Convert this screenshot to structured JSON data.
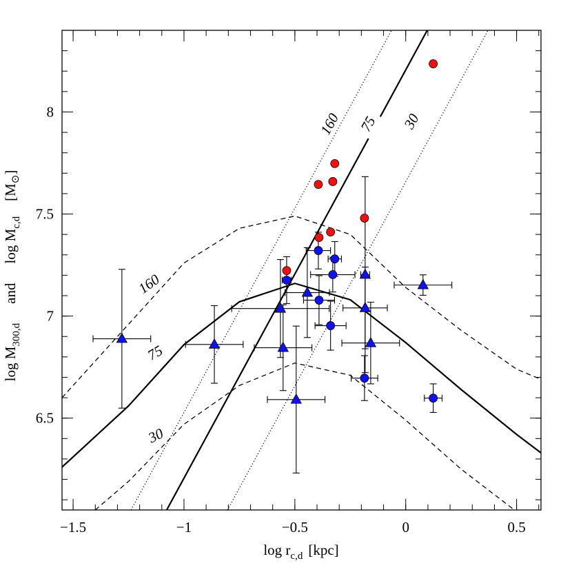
{
  "chart_data": {
    "type": "scatter",
    "xlabel": {
      "main": "log r",
      "sub": "c,d",
      "unit": "[kpc]"
    },
    "ylabel": {
      "left": "log M",
      "left_sub": "300,d",
      "middle": "and",
      "right": "log M",
      "right_sub": "c,d",
      "unit_open": "[M",
      "unit_symbol": "⊙",
      "unit_close": "]"
    },
    "xlim": [
      -1.55,
      0.61
    ],
    "ylim": [
      6.05,
      8.4
    ],
    "xticks": [
      {
        "value": -1.5,
        "label": "−1.5"
      },
      {
        "value": -1,
        "label": "−1"
      },
      {
        "value": -0.5,
        "label": "−0.5"
      },
      0,
      0.5
    ],
    "yticks": [
      6.5,
      7,
      7.5,
      8
    ],
    "xminorticks": [
      -1.5,
      -1.4,
      -1.3,
      -1.2,
      -1.1,
      -1.0,
      -0.9,
      -0.8,
      -0.7,
      -0.6,
      -0.5,
      -0.4,
      -0.3,
      -0.2,
      -0.1,
      0.0,
      0.1,
      0.2,
      0.3,
      0.4,
      0.5,
      0.6
    ],
    "yminorticks": [
      6.1,
      6.2,
      6.3,
      6.4,
      6.5,
      6.6,
      6.7,
      6.8,
      6.9,
      7.0,
      7.1,
      7.2,
      7.3,
      7.4,
      7.5,
      7.6,
      7.7,
      7.8,
      7.9,
      8.0,
      8.1,
      8.2,
      8.3,
      8.4
    ],
    "curve_labels": [
      "160",
      "75",
      "30",
      "160",
      "75",
      "30"
    ],
    "series": [
      {
        "type": "line",
        "style": "dotted",
        "color": "#000000",
        "x": [
          -1.239,
          -0.064
        ],
        "values": [
          6.05,
          8.4
        ]
      },
      {
        "type": "line",
        "style": "solid",
        "color": "#000000",
        "x": [
          -1.078,
          0.097
        ],
        "values": [
          6.05,
          8.4
        ]
      },
      {
        "type": "line",
        "style": "dotted",
        "color": "#000000",
        "x": [
          -0.804,
          0.371
        ],
        "values": [
          6.05,
          8.4
        ]
      },
      {
        "type": "line",
        "style": "dashed",
        "color": "#000000",
        "x": [
          -1.55,
          -1.25,
          -1,
          -0.75,
          -0.5,
          -0.25,
          0,
          0.25,
          0.5,
          0.61
        ],
        "values": [
          6.6,
          6.96,
          7.26,
          7.43,
          7.49,
          7.4,
          7.14,
          6.93,
          6.74,
          6.69
        ]
      },
      {
        "type": "line",
        "style": "solid",
        "color": "#000000",
        "x": [
          -1.55,
          -1.25,
          -1,
          -0.75,
          -0.5,
          -0.25,
          0,
          0.25,
          0.5,
          0.61
        ],
        "values": [
          6.26,
          6.56,
          6.86,
          7.07,
          7.16,
          7.08,
          6.87,
          6.64,
          6.42,
          6.33
        ]
      },
      {
        "type": "line",
        "style": "dashed",
        "color": "#000000",
        "x": [
          -1.4,
          -1.25,
          -1,
          -0.75,
          -0.5,
          -0.25,
          0,
          0.25,
          0.49
        ],
        "values": [
          6.05,
          6.19,
          6.47,
          6.66,
          6.77,
          6.71,
          6.49,
          6.25,
          6.05
        ]
      },
      {
        "type": "scatter",
        "marker": "circle",
        "color": "#ee1111",
        "x": [
          0.124,
          -0.394,
          -0.329,
          -0.32,
          -0.186,
          -0.391,
          -0.339,
          -0.537
        ],
        "values": [
          8.236,
          7.645,
          7.659,
          7.747,
          7.48,
          7.385,
          7.412,
          7.223
        ]
      },
      {
        "type": "scatter",
        "marker": "circle",
        "color": "#1111ee",
        "x": [
          -0.537,
          -0.394,
          -0.32,
          -0.329,
          -0.391,
          -0.339,
          -0.186,
          0.124
        ],
        "values": [
          7.176,
          7.321,
          7.28,
          7.203,
          7.078,
          6.953,
          6.696,
          6.598
        ],
        "xerr": [
          0.02,
          0.055,
          0.03,
          0.1,
          0.07,
          0.07,
          0.06,
          0.04
        ],
        "yerr": [
          0.115,
          0.09,
          0.085,
          0.085,
          0.12,
          0.12,
          0.11,
          0.07
        ]
      },
      {
        "type": "scatter",
        "marker": "triangle",
        "color": "#1111ee",
        "x": [
          -1.28,
          -0.863,
          -0.565,
          -0.553,
          -0.494,
          -0.444,
          -0.183,
          -0.183,
          -0.158,
          0.078
        ],
        "values": [
          6.889,
          6.861,
          7.037,
          6.845,
          6.591,
          7.115,
          7.203,
          7.04,
          6.868,
          7.152
        ],
        "xerr": [
          0.13,
          0.13,
          0.22,
          0.13,
          0.13,
          0.1,
          0.02,
          0.1,
          0.13,
          0.13
        ],
        "yerr": [
          0.34,
          0.19,
          0.24,
          0.21,
          0.36,
          0.22,
          0.48,
          0.2,
          0.2,
          0.05
        ]
      }
    ]
  }
}
